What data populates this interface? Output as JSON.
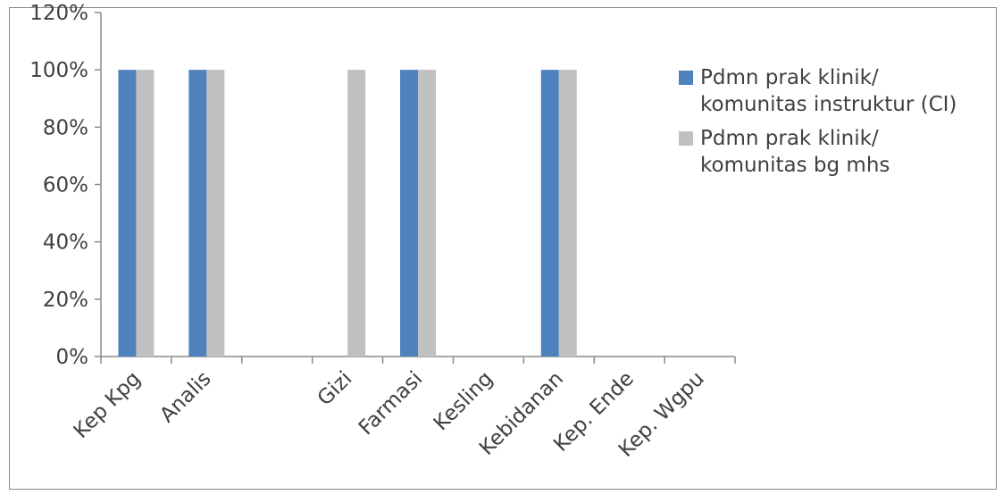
{
  "chart_data": {
    "type": "bar",
    "categories": [
      "Kep Kpg",
      "Analis",
      "",
      "Gizi",
      "Farmasi",
      "Kesling",
      "Kebidanan",
      "Kep. Ende",
      "Kep. Wgpu"
    ],
    "series": [
      {
        "name": "Pdmn prak klinik/ komunitas instruktur (CI)",
        "name_lines": [
          "Pdmn prak klinik/",
          "komunitas instruktur (CI)"
        ],
        "color": "#4f81bd",
        "values": [
          1,
          1,
          0,
          0,
          1,
          0,
          1,
          0,
          0
        ]
      },
      {
        "name": "Pdmn prak klinik/ komunitas bg mhs",
        "name_lines": [
          "Pdmn prak klinik/",
          "komunitas bg mhs"
        ],
        "color": "#c0c0c0",
        "values": [
          1,
          1,
          0,
          1,
          1,
          0,
          1,
          0,
          0
        ]
      }
    ],
    "yticks": [
      "0%",
      "20%",
      "40%",
      "60%",
      "80%",
      "100%",
      "120%"
    ],
    "ylim": [
      0,
      1.2
    ],
    "title": "",
    "xlabel": "",
    "ylabel": "",
    "grid": false,
    "legend_position": "right"
  }
}
